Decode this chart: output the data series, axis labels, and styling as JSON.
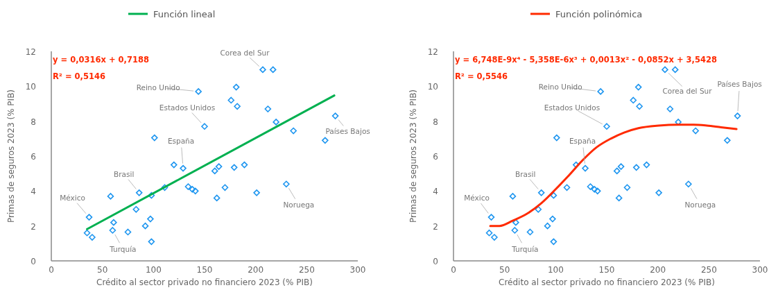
{
  "chart_data": [
    {
      "type": "scatter",
      "xlabel": "Crédito al sector privado no financiero 2023 (% PIB)",
      "ylabel": "Primas de seguros 2023 (% PIB)",
      "xlim": [
        0,
        300
      ],
      "xticks": [
        0,
        50,
        100,
        150,
        200,
        250,
        300
      ],
      "ylim": [
        0,
        12
      ],
      "yticks": [
        0,
        2,
        4,
        6,
        8,
        10,
        12
      ],
      "grid": false,
      "legend": "top",
      "series": [
        {
          "marker": "diamond",
          "color": "#1e96f0",
          "x": [
            37,
            35,
            40,
            58,
            61,
            60,
            75,
            83,
            86,
            92,
            97,
            98,
            98,
            101,
            111,
            120,
            129,
            134,
            138,
            141,
            144,
            150,
            207,
            217,
            181,
            176,
            182,
            212,
            220,
            237,
            278,
            268,
            160,
            164,
            179,
            189,
            230,
            170,
            162,
            201
          ],
          "values": [
            2.5,
            1.6,
            1.35,
            3.7,
            2.2,
            1.75,
            1.65,
            2.95,
            3.9,
            2.0,
            2.4,
            1.1,
            3.75,
            7.05,
            4.2,
            5.5,
            5.3,
            4.25,
            4.1,
            4.0,
            9.7,
            7.7,
            10.95,
            10.95,
            9.95,
            9.2,
            8.85,
            8.7,
            7.95,
            7.45,
            8.3,
            6.9,
            5.15,
            5.4,
            5.35,
            5.5,
            4.4,
            4.2,
            3.6,
            3.9
          ]
        },
        {
          "type": "line",
          "name": "Función lineal",
          "color": "#00b050",
          "x": [
            35,
            277
          ],
          "values": [
            1.82,
            9.47
          ]
        }
      ],
      "annotations": [
        "y = 0,0316x + 0,7188",
        "R² = 0,5146",
        {
          "text": "México",
          "x": 37,
          "y": 2.5
        },
        {
          "text": "Turquía",
          "x": 60,
          "y": 1.75
        },
        {
          "text": "Brasil",
          "x": 86,
          "y": 3.9
        },
        {
          "text": "España",
          "x": 129,
          "y": 5.3
        },
        {
          "text": "Estados Unidos",
          "x": 150,
          "y": 7.7
        },
        {
          "text": "Reino Unido",
          "x": 144,
          "y": 9.7
        },
        {
          "text": "Corea del Sur",
          "x": 207,
          "y": 10.95
        },
        {
          "text": "Países Bajos",
          "x": 278,
          "y": 8.3
        },
        {
          "text": "Noruega",
          "x": 230,
          "y": 4.4
        }
      ]
    },
    {
      "type": "scatter",
      "xlabel": "Crédito al sector privado no financiero 2023 (% PIB)",
      "ylabel": "Primas de seguros 2023 (% PIB)",
      "xlim": [
        0,
        300
      ],
      "xticks": [
        0,
        50,
        100,
        150,
        200,
        250,
        300
      ],
      "ylim": [
        0,
        12
      ],
      "yticks": [
        0,
        2,
        4,
        6,
        8,
        10,
        12
      ],
      "grid": false,
      "legend": "top",
      "series": [
        {
          "marker": "diamond",
          "color": "#1e96f0",
          "x": [
            37,
            35,
            40,
            58,
            61,
            60,
            75,
            83,
            86,
            92,
            97,
            98,
            98,
            101,
            111,
            120,
            129,
            134,
            138,
            141,
            144,
            150,
            207,
            217,
            181,
            176,
            182,
            212,
            220,
            237,
            278,
            268,
            160,
            164,
            179,
            189,
            230,
            170,
            162,
            201
          ],
          "values": [
            2.5,
            1.6,
            1.35,
            3.7,
            2.2,
            1.75,
            1.65,
            2.95,
            3.9,
            2.0,
            2.4,
            1.1,
            3.75,
            7.05,
            4.2,
            5.5,
            5.3,
            4.25,
            4.1,
            4.0,
            9.7,
            7.7,
            10.95,
            10.95,
            9.95,
            9.2,
            8.85,
            8.7,
            7.95,
            7.45,
            8.3,
            6.9,
            5.15,
            5.4,
            5.35,
            5.5,
            4.4,
            4.2,
            3.6,
            3.9
          ]
        },
        {
          "type": "line",
          "name": "Función polinómica",
          "color": "#ff2a00",
          "x": [
            36,
            45,
            58,
            72,
            86,
            100,
            113,
            127,
            140,
            154,
            167,
            181,
            201,
            220,
            235,
            248,
            262,
            277
          ],
          "values": [
            2.0,
            2.0,
            2.3,
            2.7,
            3.3,
            4.1,
            4.9,
            5.8,
            6.5,
            7.0,
            7.35,
            7.6,
            7.75,
            7.8,
            7.8,
            7.75,
            7.65,
            7.55
          ]
        }
      ],
      "annotations": [
        "y = 6,748E-9x⁴ - 5,358E-6x³ + 0,0013x² - 0,0852x + 3,5428",
        "R² = 0,5546",
        {
          "text": "México",
          "x": 37,
          "y": 2.5
        },
        {
          "text": "Turquía",
          "x": 60,
          "y": 1.75
        },
        {
          "text": "Brasil",
          "x": 86,
          "y": 3.9
        },
        {
          "text": "España",
          "x": 129,
          "y": 5.3
        },
        {
          "text": "Estados Unidos",
          "x": 150,
          "y": 7.7
        },
        {
          "text": "Reino Unido",
          "x": 144,
          "y": 9.7
        },
        {
          "text": "Corea del Sur",
          "x": 207,
          "y": 10.95
        },
        {
          "text": "Países Bajos",
          "x": 278,
          "y": 8.3
        },
        {
          "text": "Noruega",
          "x": 230,
          "y": 4.4
        }
      ]
    }
  ]
}
